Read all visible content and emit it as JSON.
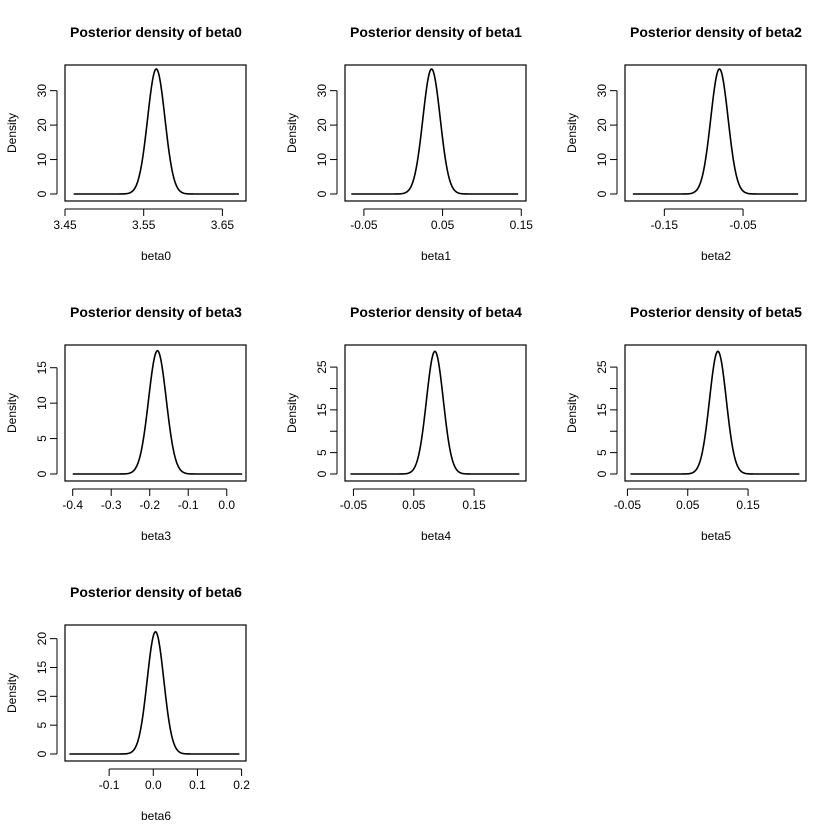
{
  "chart_data": [
    {
      "type": "line",
      "title": "Posterior density of beta0",
      "xlabel": "beta0",
      "ylabel": "Density",
      "xlim": [
        3.45,
        3.68
      ],
      "ylim": [
        0,
        36
      ],
      "xticks": [
        3.45,
        3.55,
        3.65
      ],
      "xtick_labels": [
        "3.45",
        "3.55",
        "3.65"
      ],
      "yticks": [
        0,
        10,
        20,
        30
      ],
      "ytick_labels": [
        "0",
        "10",
        "20",
        "30"
      ],
      "peak_x": 3.566,
      "peak_density": 36.3,
      "curve_range": [
        3.461,
        3.671
      ]
    },
    {
      "type": "line",
      "title": "Posterior density of beta1",
      "xlabel": "beta1",
      "ylabel": "Density",
      "xlim": [
        -0.074,
        0.156
      ],
      "ylim": [
        0,
        36
      ],
      "xticks": [
        -0.05,
        0.05,
        0.15
      ],
      "xtick_labels": [
        "-0.05",
        "0.05",
        "0.15"
      ],
      "yticks": [
        0,
        10,
        20,
        30
      ],
      "ytick_labels": [
        "0",
        "10",
        "20",
        "30"
      ],
      "peak_x": 0.036,
      "peak_density": 36.3,
      "curve_range": [
        -0.066,
        0.146
      ]
    },
    {
      "type": "line",
      "title": "Posterior density of beta2",
      "xlabel": "beta2",
      "ylabel": "Density",
      "xlim": [
        -0.2,
        0.03
      ],
      "ylim": [
        0,
        36
      ],
      "xticks": [
        -0.15,
        -0.05
      ],
      "xtick_labels": [
        "-0.15",
        "-0.05"
      ],
      "yticks": [
        0,
        10,
        20,
        30
      ],
      "ytick_labels": [
        "0",
        "10",
        "20",
        "30"
      ],
      "peak_x": -0.08,
      "peak_density": 36.3,
      "curve_range": [
        -0.19,
        0.02
      ]
    },
    {
      "type": "line",
      "title": "Posterior density of beta3",
      "xlabel": "beta3",
      "ylabel": "Density",
      "xlim": [
        -0.42,
        0.05
      ],
      "ylim": [
        0,
        17.5
      ],
      "xticks": [
        -0.4,
        -0.3,
        -0.2,
        -0.1,
        0.0
      ],
      "xtick_labels": [
        "-0.4",
        "-0.3",
        "-0.2",
        "-0.1",
        "0.0"
      ],
      "yticks": [
        0,
        5,
        10,
        15
      ],
      "ytick_labels": [
        "0",
        "5",
        "10",
        "15"
      ],
      "peak_x": -0.18,
      "peak_density": 17.4,
      "curve_range": [
        -0.4,
        0.04
      ]
    },
    {
      "type": "line",
      "title": "Posterior density of beta4",
      "xlabel": "beta4",
      "ylabel": "Density",
      "xlim": [
        -0.064,
        0.236
      ],
      "ylim": [
        0,
        29
      ],
      "xticks": [
        -0.05,
        0.05,
        0.15
      ],
      "xtick_labels": [
        "-0.05",
        "0.05",
        "0.15"
      ],
      "yticks": [
        0,
        5,
        15,
        25
      ],
      "ytick_labels": [
        "0",
        "5",
        "15",
        "25"
      ],
      "minor_yticks": [
        10,
        20
      ],
      "peak_x": 0.085,
      "peak_density": 28.7,
      "curve_range": [
        -0.055,
        0.225
      ]
    },
    {
      "type": "line",
      "title": "Posterior density of beta5",
      "xlabel": "beta5",
      "ylabel": "Density",
      "xlim": [
        -0.054,
        0.246
      ],
      "ylim": [
        0,
        29
      ],
      "xticks": [
        -0.05,
        0.05,
        0.15
      ],
      "xtick_labels": [
        "-0.05",
        "0.05",
        "0.15"
      ],
      "yticks": [
        0,
        5,
        15,
        25
      ],
      "ytick_labels": [
        "0",
        "5",
        "15",
        "25"
      ],
      "minor_yticks": [
        10,
        20
      ],
      "peak_x": 0.1,
      "peak_density": 28.7,
      "curve_range": [
        -0.045,
        0.235
      ]
    },
    {
      "type": "line",
      "title": "Posterior density of beta6",
      "xlabel": "beta6",
      "ylabel": "Density",
      "xlim": [
        -0.2,
        0.21
      ],
      "ylim": [
        0,
        21.5
      ],
      "xticks": [
        -0.1,
        0.0,
        0.1,
        0.2
      ],
      "xtick_labels": [
        "-0.1",
        "0.0",
        "0.1",
        "0.2"
      ],
      "yticks": [
        0,
        5,
        10,
        15,
        20
      ],
      "ytick_labels": [
        "0",
        "5",
        "10",
        "15",
        "20"
      ],
      "peak_x": 0.005,
      "peak_density": 21.2,
      "curve_range": [
        -0.19,
        0.195
      ]
    }
  ]
}
